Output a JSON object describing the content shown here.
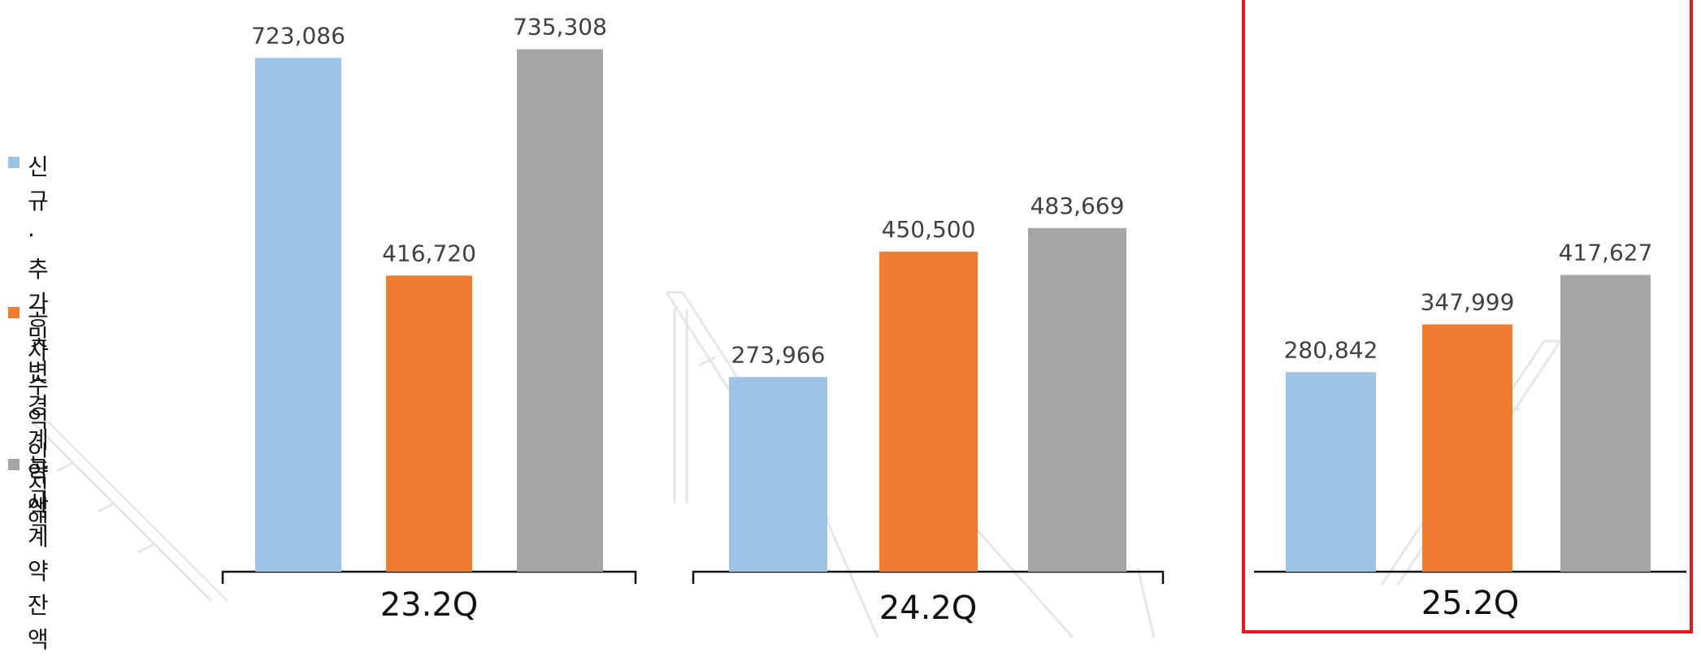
{
  "chart_data": {
    "type": "bar",
    "categories": [
      "23.2Q",
      "24.2Q",
      "25.2Q"
    ],
    "series": [
      {
        "name": "신규·추가 및\n변경계약액",
        "color": "#9dc3e6",
        "values": [
          723086,
          273966,
          280842
        ]
      },
      {
        "name": "공사수익인식액",
        "color": "#ed7d31",
        "values": [
          416720,
          450500,
          347999
        ]
      },
      {
        "name": "공사계약잔액",
        "color": "#a5a5a5",
        "values": [
          735308,
          483669,
          417627
        ]
      }
    ],
    "data_labels": [
      [
        "723,086",
        "273,966",
        "280,842"
      ],
      [
        "416,720",
        "450,500",
        "347,999"
      ],
      [
        "735,308",
        "483,669",
        "417,627"
      ]
    ],
    "legend_position": "left",
    "grid": false,
    "highlighted_category": "25.2Q",
    "highlight_color": "#e8191f"
  }
}
